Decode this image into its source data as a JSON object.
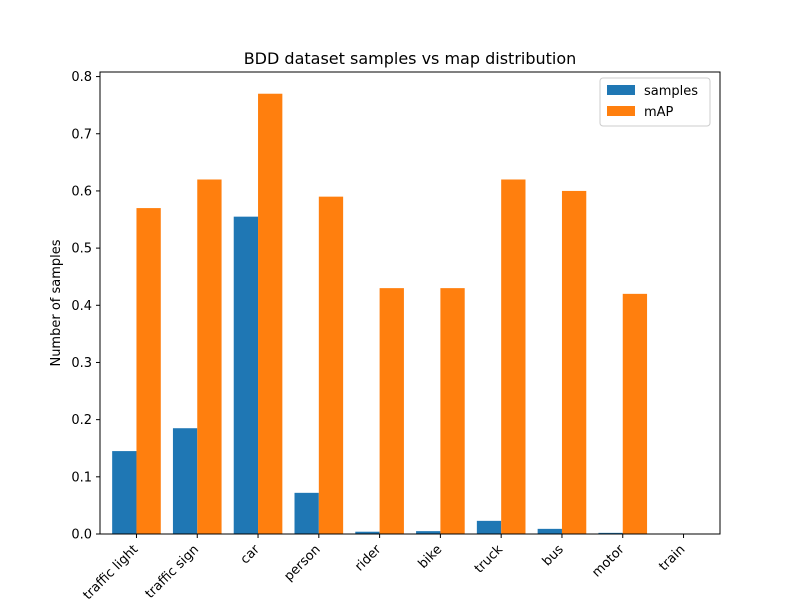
{
  "chart_data": {
    "type": "bar",
    "title": "BDD dataset samples vs map distribution",
    "xlabel": "",
    "ylabel": "Number of samples",
    "categories": [
      "traffic light",
      "traffic sign",
      "car",
      "person",
      "rider",
      "bike",
      "truck",
      "bus",
      "motor",
      "train"
    ],
    "series": [
      {
        "name": "samples",
        "color": "#1f77b4",
        "values": [
          0.145,
          0.185,
          0.555,
          0.072,
          0.004,
          0.005,
          0.023,
          0.009,
          0.002,
          0.0
        ]
      },
      {
        "name": "mAP",
        "color": "#ff7f0e",
        "values": [
          0.57,
          0.62,
          0.77,
          0.59,
          0.43,
          0.43,
          0.62,
          0.6,
          0.42,
          0.0
        ]
      }
    ],
    "ylim": [
      0,
      0.808
    ],
    "yticks": [
      "0.0",
      "0.1",
      "0.2",
      "0.3",
      "0.4",
      "0.5",
      "0.6",
      "0.7",
      "0.8"
    ],
    "grid": false,
    "legend_position": "top-right"
  }
}
